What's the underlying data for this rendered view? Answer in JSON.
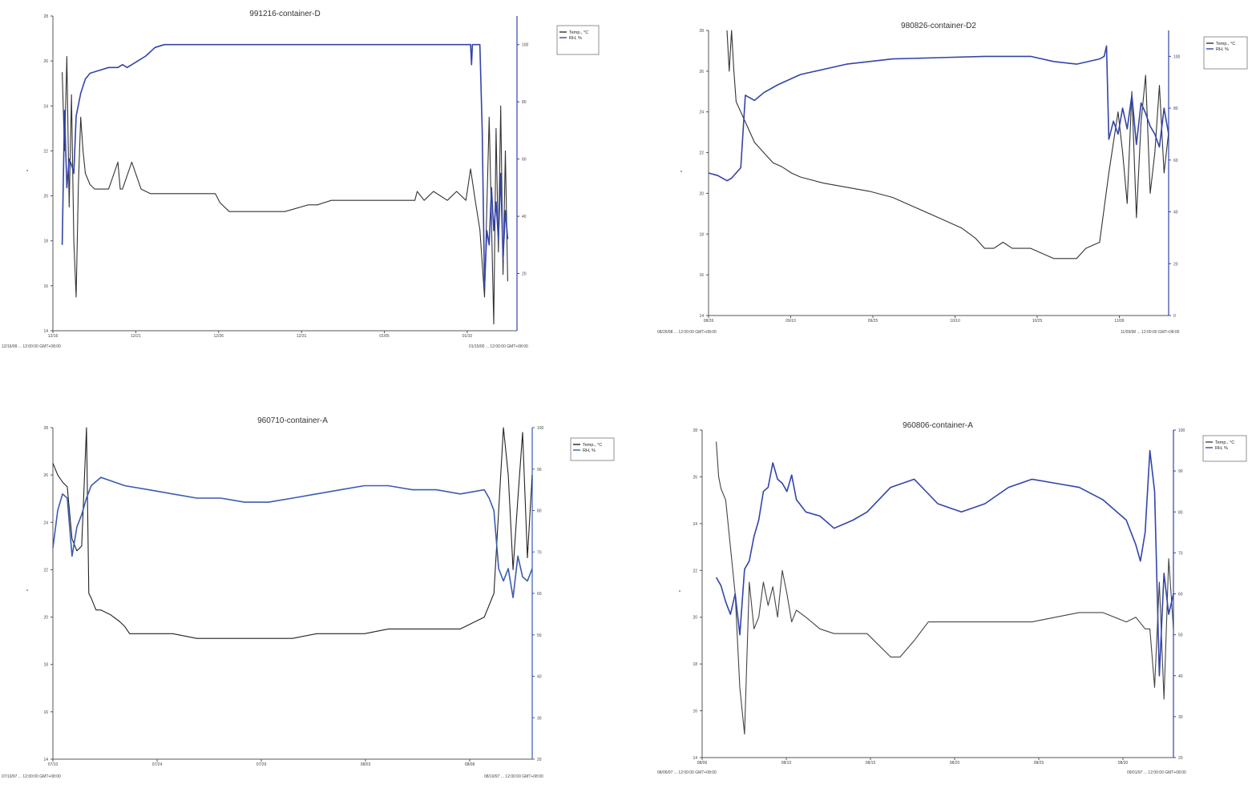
{
  "chart_data": [
    {
      "type": "line",
      "title": "991216-container-D",
      "colors": {
        "temp": "#333333",
        "rh": "#3344aa"
      },
      "legend": [
        "Temp., °C",
        "RH, %"
      ],
      "legend_position": "top-right",
      "ylabel_left": "°",
      "ylabel_right": "",
      "left_ticks": [
        "14",
        "16",
        "18",
        "20",
        "22",
        "24",
        "26",
        "28"
      ],
      "right_ticks": [
        "20",
        "40",
        "60",
        "80",
        "100"
      ],
      "x_ticks": [
        "12/16",
        "12/21",
        "12/26",
        "12/31",
        "01/05",
        "01/10"
      ],
      "footer_left": "12/16/99 ... 12:00:00 GMT+08:00",
      "footer_right": "01/15/00 ... 12:00:00 GMT+08:00",
      "ylim_left": [
        14,
        28
      ],
      "ylim_right": [
        0,
        110
      ],
      "xlim": [
        0,
        100
      ],
      "grid": false,
      "series": [
        {
          "name": "Temp., °C",
          "x": [
            2,
            2.5,
            3,
            3.5,
            4,
            4.5,
            5,
            5.5,
            6,
            6.5,
            7,
            8,
            9,
            10,
            12,
            14,
            14.5,
            15,
            17,
            19,
            21,
            25,
            30,
            33,
            35,
            36,
            38,
            38.5,
            40,
            42,
            45,
            50,
            55,
            57,
            60,
            60.5,
            62,
            63,
            66,
            70,
            75,
            78,
            78.5,
            80,
            82,
            85,
            87,
            89,
            90,
            91,
            92,
            93,
            94,
            95,
            95.5,
            96,
            96.5,
            97,
            97.5,
            98
          ],
          "y": [
            25.5,
            22,
            26.2,
            19.5,
            24.5,
            18,
            15.5,
            20.5,
            23.5,
            22,
            21,
            20.5,
            20.3,
            20.3,
            20.3,
            21.5,
            20.3,
            20.3,
            21.5,
            20.3,
            20.1,
            20.1,
            20.1,
            20.1,
            20.1,
            19.7,
            19.3,
            19.3,
            19.3,
            19.3,
            19.3,
            19.3,
            19.6,
            19.6,
            19.8,
            19.8,
            19.8,
            19.8,
            19.8,
            19.8,
            19.8,
            19.8,
            20.2,
            19.8,
            20.2,
            19.8,
            20.2,
            19.8,
            21.2,
            19.8,
            18.5,
            15.5,
            23.5,
            14.3,
            23,
            17.5,
            24,
            16.5,
            22,
            16.2
          ]
        },
        {
          "name": "RH, %",
          "x": [
            2,
            2.5,
            3,
            3.5,
            4,
            4.5,
            5,
            6,
            7,
            8,
            10,
            12,
            14,
            15,
            16,
            18,
            20,
            22,
            24,
            90,
            90.2,
            90.4,
            91,
            92,
            92.5,
            93,
            93.5,
            94,
            94.5,
            95,
            95.5,
            96,
            96.5,
            97,
            97.5,
            98
          ],
          "y": [
            30,
            77,
            50,
            60,
            58,
            55,
            75,
            83,
            88,
            90,
            91,
            92,
            92,
            93,
            92,
            94,
            96,
            99,
            100,
            100,
            93,
            100,
            100,
            100,
            70,
            15,
            35,
            30,
            50,
            35,
            45,
            32,
            55,
            25,
            42,
            32
          ]
        }
      ]
    },
    {
      "type": "line",
      "title": "980826-container-D2",
      "colors": {
        "temp": "#333333",
        "rh": "#3344aa"
      },
      "legend": [
        "Temp., °C",
        "RH, %"
      ],
      "legend_position": "top-right",
      "ylabel_left": "°",
      "ylabel_right": "",
      "left_ticks": [
        "14",
        "16",
        "18",
        "20",
        "22",
        "24",
        "26",
        "28"
      ],
      "right_ticks": [
        "0",
        "20",
        "40",
        "60",
        "80",
        "100"
      ],
      "x_ticks": [
        "08/26",
        "09/10",
        "09/25",
        "10/10",
        "10/25",
        "11/09"
      ],
      "footer_left": "08/26/98 ... 12:00:00 GMT+08:00",
      "footer_right": "11/09/98 ... 12:00:00 GMT+08:00",
      "ylim_left": [
        14,
        28
      ],
      "ylim_right": [
        0,
        110
      ],
      "xlim": [
        0,
        100
      ],
      "grid": false,
      "series": [
        {
          "name": "Temp., °C",
          "x": [
            4,
            4.5,
            5,
            5.5,
            6,
            7,
            8,
            10,
            12,
            14,
            16,
            18,
            20,
            25,
            30,
            35,
            40,
            45,
            50,
            55,
            58,
            60,
            62,
            64,
            66,
            70,
            75,
            80,
            82,
            85,
            87,
            89,
            90,
            91,
            92,
            93,
            94,
            95,
            96,
            97,
            98,
            99,
            100
          ],
          "y": [
            28,
            26,
            28,
            26,
            24.5,
            24,
            23.5,
            22.5,
            22,
            21.5,
            21.3,
            21,
            20.8,
            20.5,
            20.3,
            20.1,
            19.8,
            19.3,
            18.8,
            18.3,
            17.8,
            17.3,
            17.3,
            17.6,
            17.3,
            17.3,
            16.8,
            16.8,
            17.3,
            17.6,
            21,
            24,
            22,
            19.5,
            25,
            18.8,
            23.5,
            25.8,
            20,
            22,
            25.3,
            21,
            23
          ]
        },
        {
          "name": "RH, %",
          "x": [
            0,
            2,
            4,
            5,
            6,
            7,
            8,
            10,
            12,
            15,
            20,
            30,
            40,
            50,
            60,
            70,
            75,
            80,
            85,
            86,
            86.5,
            87,
            88,
            89,
            90,
            91,
            92,
            93,
            94,
            95,
            96,
            97,
            98,
            99,
            100
          ],
          "y": [
            55,
            54,
            52,
            53,
            55,
            57,
            85,
            83,
            86,
            89,
            93,
            97,
            99,
            99.5,
            100,
            100,
            98,
            97,
            99,
            100,
            104,
            68,
            75,
            70,
            80,
            72,
            85,
            66,
            82,
            78,
            73,
            70,
            65,
            80,
            70
          ]
        }
      ]
    },
    {
      "type": "line",
      "title": "960710-container-A",
      "colors": {
        "temp": "#222222",
        "rh": "#3a5cb0"
      },
      "legend": [
        "Temp., °C",
        "RH, %"
      ],
      "legend_position": "top-right",
      "ylabel_left": "°",
      "ylabel_right": "",
      "left_ticks": [
        "14",
        "16",
        "18",
        "20",
        "22",
        "24",
        "26",
        "28"
      ],
      "right_ticks": [
        "20",
        "30",
        "40",
        "50",
        "60",
        "70",
        "80",
        "90",
        "100"
      ],
      "x_ticks": [
        "07/10",
        "07/24",
        "07/29",
        "08/03",
        "08/08"
      ],
      "footer_left": "07/10/97 ... 12:00:00 GMT+08:00",
      "footer_right": "08/10/97 ... 12:00:00 GMT+08:00",
      "ylim_left": [
        14,
        28
      ],
      "ylim_right": [
        20,
        100
      ],
      "xlim": [
        0,
        100
      ],
      "grid": false,
      "series": [
        {
          "name": "Temp., °C",
          "x": [
            0,
            1,
            2,
            3,
            4,
            5,
            6,
            7,
            7.5,
            8,
            9,
            10,
            12,
            14,
            15,
            16,
            20,
            25,
            30,
            35,
            40,
            45,
            50,
            55,
            60,
            65,
            70,
            75,
            80,
            85,
            90,
            92,
            94,
            95,
            96,
            97,
            98,
            99,
            100
          ],
          "y": [
            26.5,
            26,
            25.7,
            25.5,
            23.3,
            22.8,
            23,
            28,
            21,
            20.8,
            20.3,
            20.3,
            20.1,
            19.8,
            19.6,
            19.3,
            19.3,
            19.3,
            19.1,
            19.1,
            19.1,
            19.1,
            19.1,
            19.3,
            19.3,
            19.3,
            19.5,
            19.5,
            19.5,
            19.5,
            20,
            21,
            28,
            26,
            22,
            25,
            27.8,
            22.5,
            26
          ]
        },
        {
          "name": "RH, %",
          "x": [
            0,
            1,
            2,
            3,
            4,
            5,
            6,
            7,
            8,
            10,
            15,
            20,
            25,
            30,
            35,
            40,
            45,
            50,
            55,
            60,
            65,
            70,
            75,
            80,
            85,
            90,
            91,
            92,
            93,
            94,
            95,
            96,
            97,
            98,
            99,
            100
          ],
          "y": [
            71,
            80,
            84,
            83,
            69,
            76,
            79,
            83,
            86,
            88,
            86,
            85,
            84,
            83,
            83,
            82,
            82,
            83,
            84,
            85,
            86,
            86,
            85,
            85,
            84,
            85,
            83,
            80,
            66,
            63,
            66,
            59,
            69,
            64,
            63,
            66
          ]
        }
      ]
    },
    {
      "type": "line",
      "title": "960806-container-A",
      "colors": {
        "temp": "#444444",
        "rh": "#3344aa"
      },
      "legend": [
        "Temp., °C",
        "RH, %"
      ],
      "legend_position": "top-right",
      "ylabel_left": "°",
      "ylabel_right": "",
      "left_ticks": [
        "14",
        "16",
        "18",
        "20",
        "22",
        "24",
        "26",
        "28"
      ],
      "right_ticks": [
        "20",
        "30",
        "40",
        "50",
        "60",
        "70",
        "80",
        "90",
        "100"
      ],
      "x_ticks": [
        "08/06",
        "08/10",
        "08/15",
        "08/20",
        "08/25",
        "08/30"
      ],
      "footer_left": "08/06/97 ... 12:00:00 GMT+08:00",
      "footer_right": "09/01/97 ... 12:00:00 GMT+08:00",
      "ylim_left": [
        14,
        28
      ],
      "ylim_right": [
        20,
        100
      ],
      "xlim": [
        0,
        100
      ],
      "grid": false,
      "series": [
        {
          "name": "Temp., °C",
          "x": [
            3,
            3.5,
            4,
            5,
            6,
            7,
            8,
            9,
            10,
            11,
            12,
            13,
            14,
            15,
            16,
            17,
            18,
            19,
            20,
            22,
            25,
            28,
            30,
            35,
            40,
            42,
            45,
            48,
            50,
            52,
            55,
            60,
            65,
            70,
            75,
            80,
            85,
            90,
            92,
            94,
            95,
            96,
            97,
            98,
            99,
            100
          ],
          "y": [
            27.5,
            26,
            25.5,
            25,
            23,
            21,
            17,
            15,
            21.5,
            19.5,
            20,
            21.5,
            20.5,
            21.3,
            20,
            22,
            21,
            19.8,
            20.3,
            20,
            19.5,
            19.3,
            19.3,
            19.3,
            18.3,
            18.3,
            19,
            19.8,
            19.8,
            19.8,
            19.8,
            19.8,
            19.8,
            19.8,
            20,
            20.2,
            20.2,
            19.8,
            20,
            19.5,
            19.5,
            17,
            21.5,
            16.5,
            22.5,
            19.5
          ]
        },
        {
          "name": "RH, %",
          "x": [
            3,
            4,
            5,
            6,
            7,
            8,
            9,
            10,
            11,
            12,
            13,
            14,
            15,
            16,
            17,
            18,
            19,
            20,
            22,
            25,
            28,
            30,
            32,
            35,
            40,
            45,
            50,
            55,
            60,
            65,
            70,
            75,
            80,
            85,
            90,
            92,
            93,
            94,
            95,
            96,
            97,
            98,
            99,
            100
          ],
          "y": [
            64,
            62,
            58,
            55,
            60,
            50,
            66,
            68,
            74,
            78,
            85,
            86,
            92,
            88,
            87,
            85,
            89,
            83,
            80,
            79,
            76,
            77,
            78,
            80,
            86,
            88,
            82,
            80,
            82,
            86,
            88,
            87,
            86,
            83,
            78,
            72,
            68,
            75,
            95,
            85,
            40,
            65,
            55,
            60
          ]
        }
      ]
    }
  ]
}
